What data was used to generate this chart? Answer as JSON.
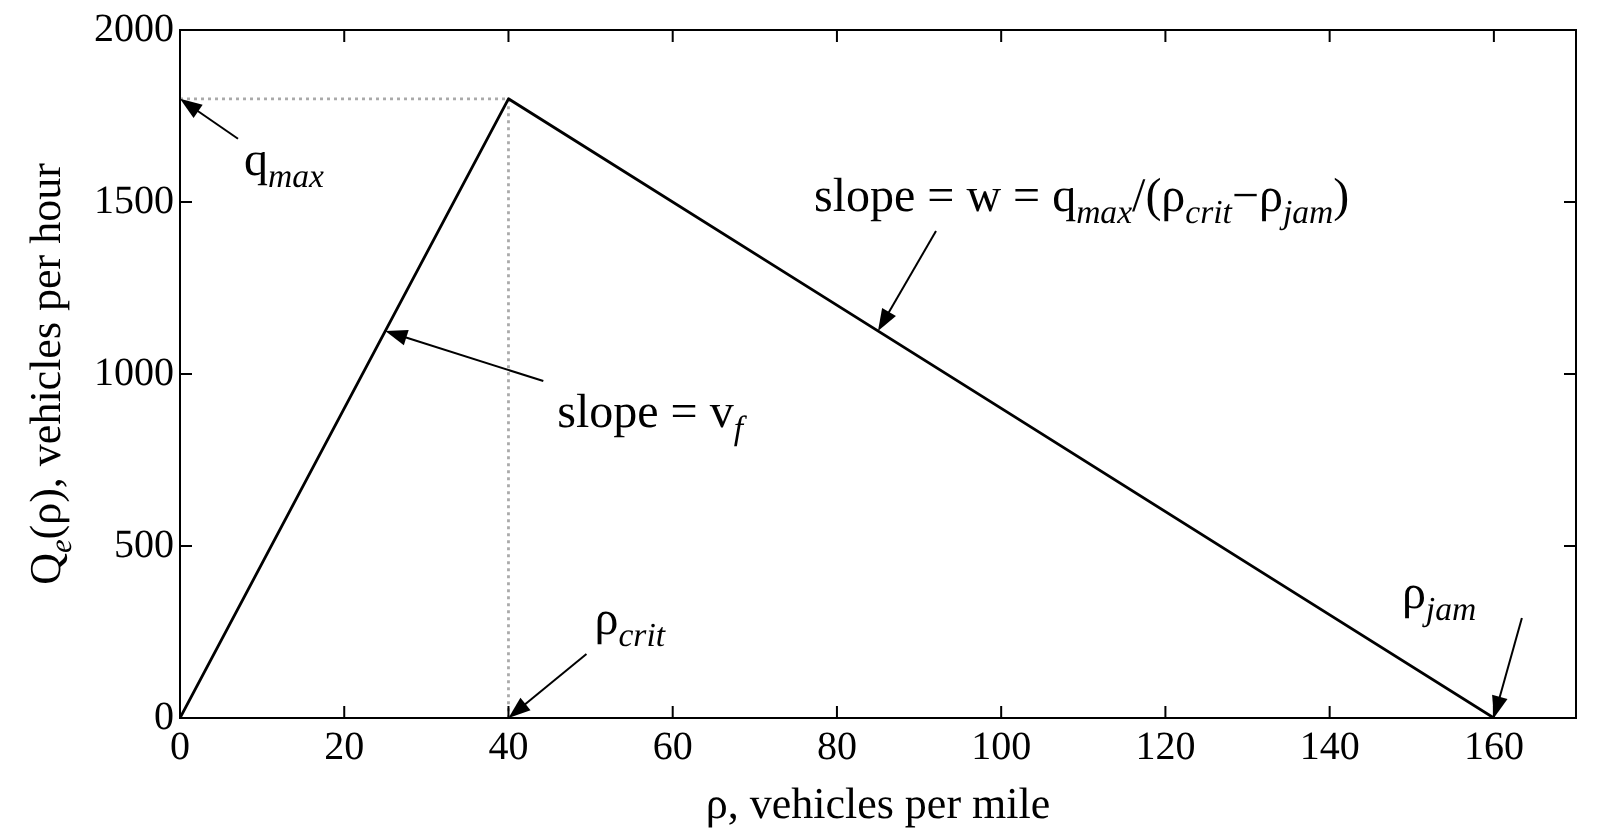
{
  "chart_data": {
    "type": "line",
    "xlabel": "ρ, vehicles per mile",
    "ylabel": "Q$_{e}$(ρ), vehicles per hour",
    "xlim": [
      0,
      170
    ],
    "ylim": [
      0,
      2000
    ],
    "xticks": [
      0,
      20,
      40,
      60,
      80,
      100,
      120,
      140,
      160
    ],
    "yticks": [
      0,
      500,
      1000,
      1500,
      2000
    ],
    "grid": false,
    "legend": false,
    "marker": "none",
    "series": [
      {
        "color": "#000000",
        "x": [
          0,
          40,
          160
        ],
        "values": [
          0,
          1800,
          0
        ],
        "line_style": "solid"
      },
      {
        "color": "#aaaaaa",
        "x": [
          0,
          40,
          40
        ],
        "values": [
          1800,
          1800,
          0
        ],
        "line_style": "dotted"
      }
    ],
    "annotations": [
      {
        "text": "q$_{max}$",
        "x": 0,
        "y": 1800
      },
      {
        "text": "slope = v$_{f}$",
        "x": 25,
        "y": 1125
      },
      {
        "text": "slope = w = q$_{max}$/(ρ$_{crit}$−ρ$_{jam}$)",
        "x": 85,
        "y": 1125
      },
      {
        "text": "ρ$_{crit}$",
        "x": 40,
        "y": 0
      },
      {
        "text": "ρ$_{jam}$",
        "x": 160,
        "y": 0
      }
    ]
  }
}
